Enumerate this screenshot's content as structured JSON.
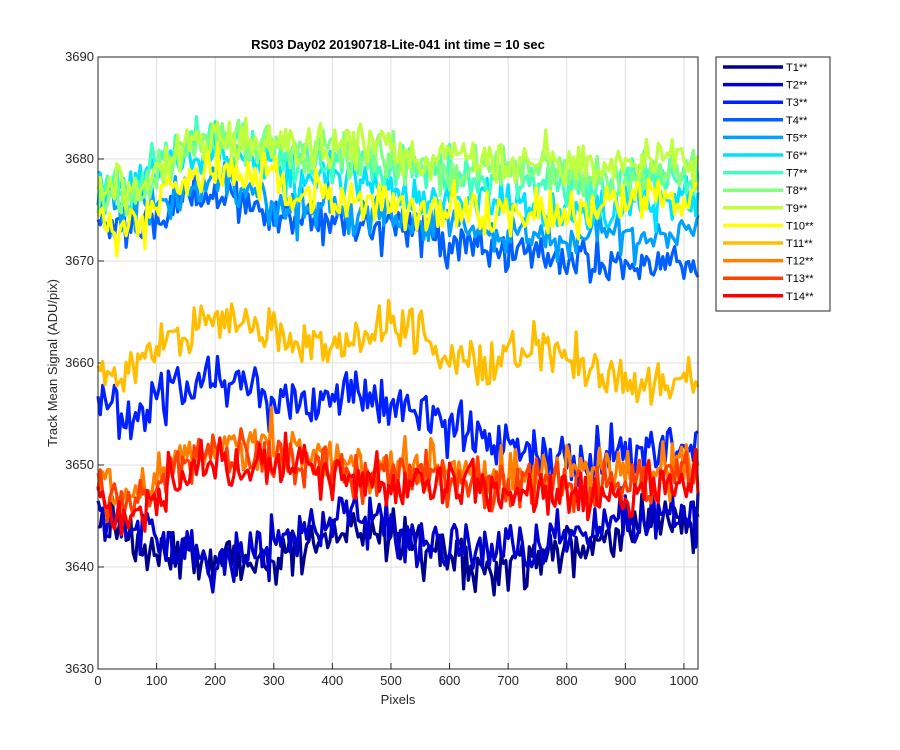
{
  "chart_data": {
    "type": "line",
    "title": "RS03 Day02 20190718-Lite-041 int time = 10 sec",
    "xlabel": "Pixels",
    "ylabel": "Track Mean Signal (ADU/pix)",
    "xlim": [
      0,
      1024
    ],
    "ylim": [
      3630,
      3690
    ],
    "xticks": [
      0,
      100,
      200,
      300,
      400,
      500,
      600,
      700,
      800,
      900,
      1000
    ],
    "yticks": [
      3630,
      3640,
      3650,
      3660,
      3670,
      3680,
      3690
    ],
    "grid": true,
    "legend_position": "outside-top-right",
    "x_step": 4,
    "series": [
      {
        "name": "T1**",
        "color": "#00008f",
        "noise": 1.9,
        "values": [
          3644,
          3643,
          3642,
          3641,
          3640,
          3640,
          3641,
          3642,
          3643,
          3644,
          3643,
          3642,
          3641,
          3640,
          3640,
          3641,
          3642,
          3642,
          3643,
          3644,
          3645,
          3644
        ]
      },
      {
        "name": "T2**",
        "color": "#0000cf",
        "noise": 1.9,
        "values": [
          3645,
          3644,
          3643,
          3642,
          3641,
          3641,
          3642,
          3643,
          3644,
          3645,
          3644,
          3643,
          3642,
          3641,
          3641,
          3642,
          3643,
          3643,
          3644,
          3645,
          3646,
          3645
        ]
      },
      {
        "name": "T3**",
        "color": "#0020ff",
        "noise": 1.8,
        "values": [
          3656,
          3655,
          3656,
          3658,
          3659,
          3658,
          3657,
          3656,
          3656,
          3657,
          3656,
          3655,
          3654,
          3653,
          3652,
          3651,
          3650,
          3650,
          3651,
          3651,
          3652,
          3652
        ]
      },
      {
        "name": "T4**",
        "color": "#0060ff",
        "noise": 1.6,
        "values": [
          3674,
          3673,
          3674,
          3676,
          3677,
          3676,
          3675,
          3674,
          3674,
          3674,
          3673,
          3673,
          3672,
          3672,
          3671,
          3671,
          3670,
          3670,
          3670,
          3670,
          3670,
          3670
        ]
      },
      {
        "name": "T5**",
        "color": "#00a0ff",
        "noise": 1.6,
        "values": [
          3676,
          3675,
          3676,
          3677,
          3678,
          3677,
          3676,
          3675,
          3675,
          3675,
          3675,
          3674,
          3674,
          3673,
          3673,
          3673,
          3672,
          3672,
          3672,
          3672,
          3673,
          3673
        ]
      },
      {
        "name": "T6**",
        "color": "#00e0ff",
        "noise": 1.6,
        "values": [
          3678,
          3677,
          3678,
          3680,
          3681,
          3680,
          3679,
          3678,
          3678,
          3678,
          3677,
          3677,
          3676,
          3676,
          3676,
          3676,
          3675,
          3675,
          3675,
          3676,
          3676,
          3676
        ]
      },
      {
        "name": "T7**",
        "color": "#40ffbf",
        "noise": 1.6,
        "values": [
          3678,
          3677,
          3679,
          3681,
          3682,
          3682,
          3681,
          3680,
          3680,
          3680,
          3679,
          3679,
          3679,
          3678,
          3678,
          3678,
          3678,
          3677,
          3677,
          3678,
          3678,
          3678
        ]
      },
      {
        "name": "T8**",
        "color": "#80ff80",
        "noise": 1.6,
        "values": [
          3677,
          3676,
          3678,
          3681,
          3682,
          3682,
          3681,
          3681,
          3681,
          3680,
          3680,
          3680,
          3679,
          3679,
          3679,
          3679,
          3679,
          3678,
          3678,
          3679,
          3679,
          3679
        ]
      },
      {
        "name": "T9**",
        "color": "#c0ff40",
        "noise": 1.6,
        "values": [
          3678,
          3677,
          3678,
          3681,
          3682,
          3682,
          3682,
          3681,
          3681,
          3681,
          3681,
          3680,
          3680,
          3680,
          3680,
          3680,
          3680,
          3679,
          3679,
          3680,
          3680,
          3680
        ]
      },
      {
        "name": "T10**",
        "color": "#ffff00",
        "noise": 1.8,
        "values": [
          3674,
          3673,
          3675,
          3678,
          3679,
          3679,
          3678,
          3677,
          3676,
          3676,
          3676,
          3675,
          3675,
          3675,
          3675,
          3675,
          3675,
          3675,
          3675,
          3676,
          3676,
          3676
        ]
      },
      {
        "name": "T11**",
        "color": "#ffbf00",
        "noise": 1.7,
        "values": [
          3660,
          3659,
          3661,
          3663,
          3664,
          3664,
          3663,
          3662,
          3661,
          3662,
          3664,
          3663,
          3661,
          3660,
          3660,
          3661,
          3661,
          3660,
          3659,
          3658,
          3658,
          3659
        ]
      },
      {
        "name": "T12**",
        "color": "#ff8000",
        "noise": 1.8,
        "values": [
          3648,
          3647,
          3649,
          3651,
          3652,
          3652,
          3652,
          3651,
          3651,
          3650,
          3650,
          3650,
          3650,
          3649,
          3649,
          3649,
          3649,
          3649,
          3649,
          3649,
          3650,
          3650
        ]
      },
      {
        "name": "T13**",
        "color": "#ff4000",
        "noise": 1.8,
        "values": [
          3647,
          3646,
          3648,
          3650,
          3651,
          3651,
          3651,
          3650,
          3650,
          3649,
          3649,
          3649,
          3649,
          3648,
          3648,
          3648,
          3648,
          3648,
          3648,
          3648,
          3649,
          3649
        ]
      },
      {
        "name": "T14**",
        "color": "#ff0000",
        "noise": 1.7,
        "values": [
          3646,
          3645,
          3647,
          3649,
          3650,
          3650,
          3650,
          3650,
          3649,
          3649,
          3648,
          3648,
          3648,
          3648,
          3647,
          3647,
          3647,
          3647,
          3647,
          3648,
          3648,
          3649
        ]
      }
    ]
  }
}
